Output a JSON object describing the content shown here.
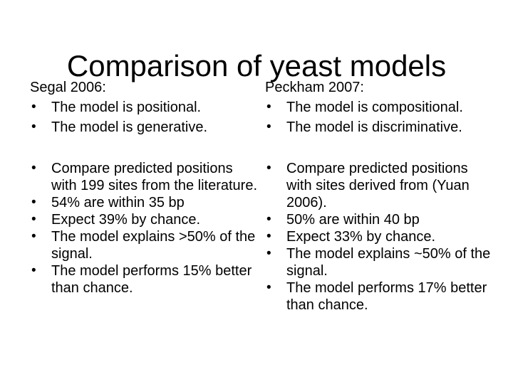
{
  "slide": {
    "title": "Comparison of yeast models",
    "bullet_glyph": "•",
    "colors": {
      "background": "#ffffff",
      "text": "#000000"
    },
    "columns": [
      {
        "heading": "Segal 2006:",
        "intro_bullets": [
          "The model is positional.",
          "The model is generative."
        ],
        "result_bullets": [
          "Compare predicted positions with 199 sites from the literature.",
          "54% are within 35 bp",
          "Expect 39% by chance.",
          "The model explains >50% of the signal.",
          "The model performs 15% better than chance."
        ]
      },
      {
        "heading": "Peckham 2007:",
        "intro_bullets": [
          "The model is compositional.",
          "The model is discriminative."
        ],
        "result_bullets": [
          "Compare predicted positions with sites derived from (Yuan 2006).",
          "50% are within 40 bp",
          "Expect 33% by chance.",
          "The model explains ~50% of the signal.",
          "The model performs 17% better than chance."
        ]
      }
    ]
  }
}
